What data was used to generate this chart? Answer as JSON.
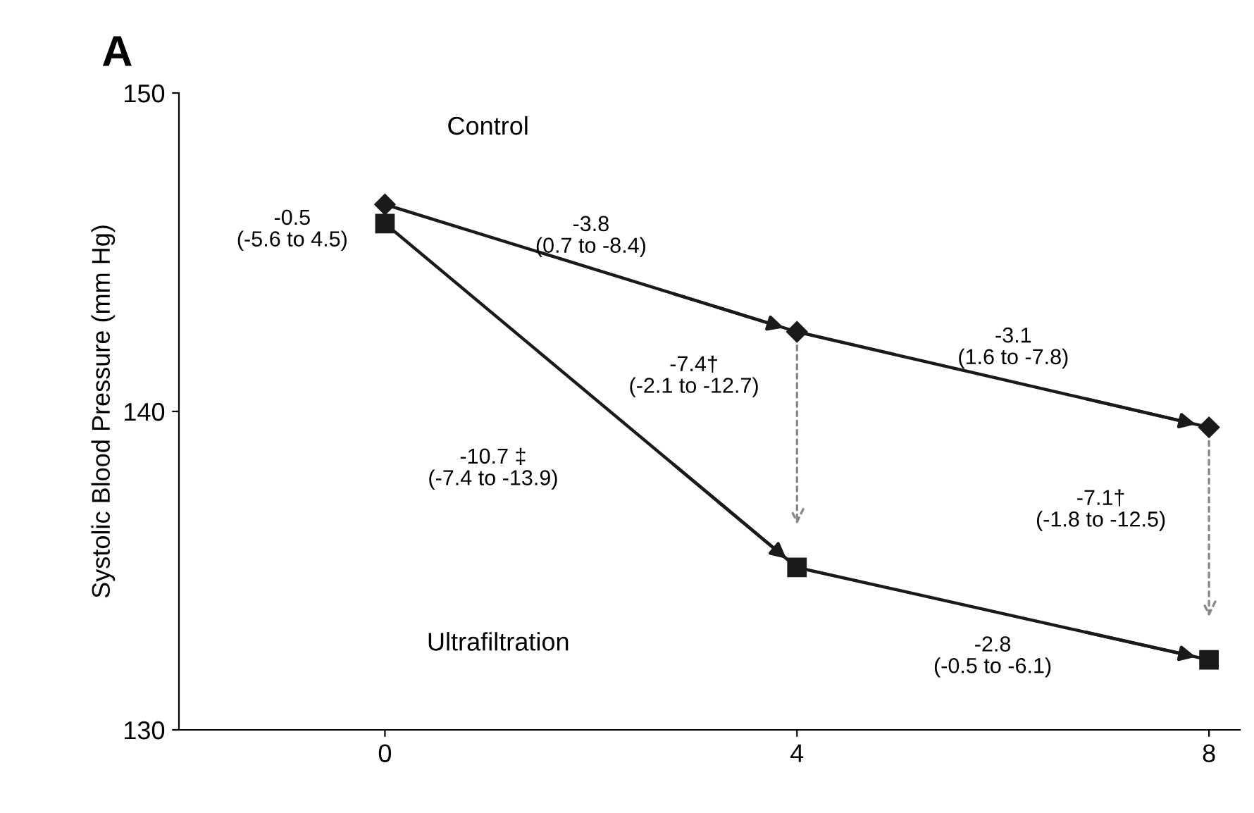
{
  "chart_data": {
    "type": "line",
    "ylabel": "Systolic Blood Pressure (mm Hg)",
    "x": [
      0,
      4,
      8
    ],
    "xlim": [
      -2,
      8.3
    ],
    "xticks": [
      0,
      4,
      8
    ],
    "ylim": [
      130,
      150
    ],
    "yticks": [
      130,
      140,
      150
    ],
    "grid": false,
    "legend": false,
    "series": [
      {
        "color": "#1a1a1a",
        "marker": "diamond",
        "values": [
          146.5,
          142.5,
          139.5
        ]
      },
      {
        "color": "#1a1a1a",
        "marker": "square",
        "values": [
          145.9,
          135.1,
          132.2
        ]
      }
    ],
    "annotations": [
      "A",
      "Control",
      "Ultrafiltration",
      "-0.5\n(-5.6 to 4.5)",
      "-3.8\n(0.7 to -8.4)",
      "-3.1\n(1.6 to -7.8)",
      "-7.4†\n(-2.1 to -12.7)",
      "-10.7 ‡\n(-7.4 to -13.9)",
      "-7.1†\n(-1.8 to -12.5)",
      "-2.8\n(-0.5 to -6.1)"
    ]
  }
}
